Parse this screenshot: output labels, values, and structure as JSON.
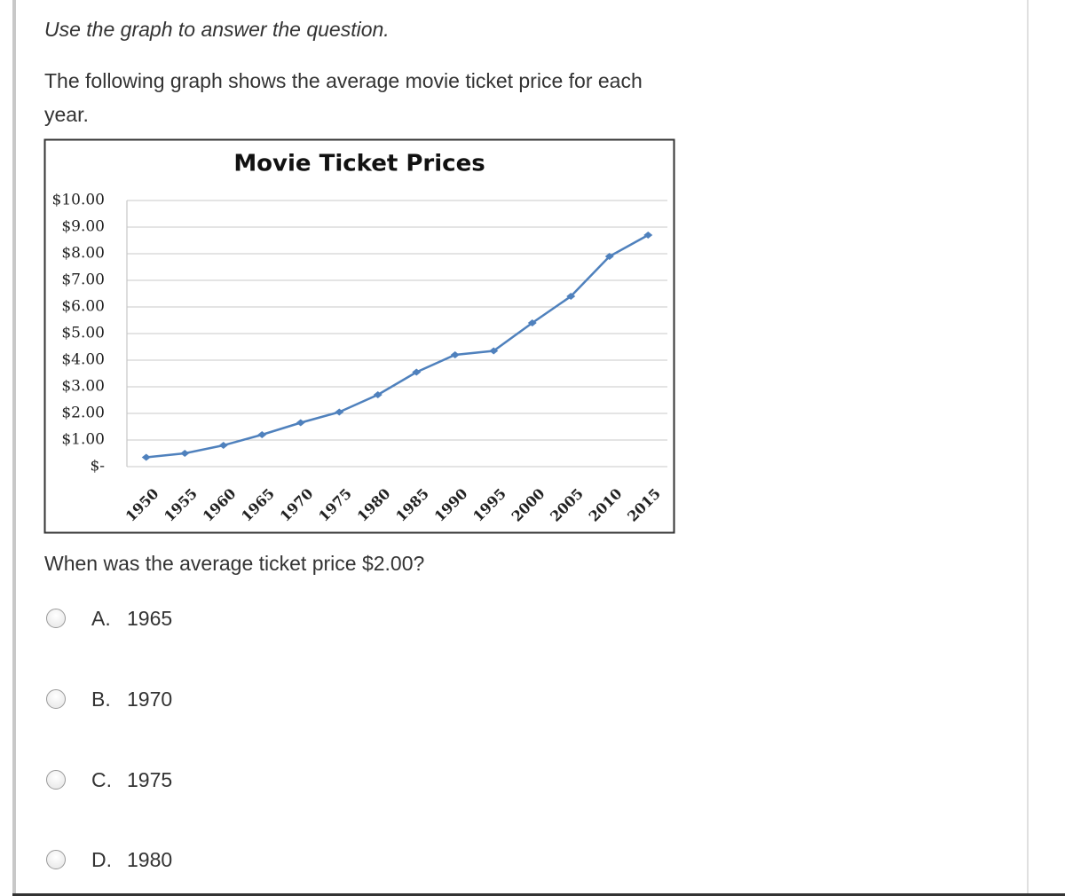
{
  "instructions": "Use the graph to answer the question.",
  "prompt": "The following graph shows the average movie ticket price for each year.",
  "chart_data": {
    "type": "line",
    "title": "Movie Ticket Prices",
    "categories": [
      "1950",
      "1955",
      "1960",
      "1965",
      "1970",
      "1975",
      "1980",
      "1985",
      "1990",
      "1995",
      "2000",
      "2005",
      "2010",
      "2015"
    ],
    "values": [
      0.35,
      0.5,
      0.8,
      1.2,
      1.65,
      2.05,
      2.7,
      3.55,
      4.2,
      4.35,
      5.4,
      6.4,
      7.9,
      8.7
    ],
    "color": "#4f81bd",
    "ylim": [
      0,
      10
    ],
    "yticks": [
      {
        "value": 0,
        "label": "$-"
      },
      {
        "value": 1,
        "label": "$1.00"
      },
      {
        "value": 2,
        "label": "$2.00"
      },
      {
        "value": 3,
        "label": "$3.00"
      },
      {
        "value": 4,
        "label": "$4.00"
      },
      {
        "value": 5,
        "label": "$5.00"
      },
      {
        "value": 6,
        "label": "$6.00"
      },
      {
        "value": 7,
        "label": "$7.00"
      },
      {
        "value": 8,
        "label": "$8.00"
      },
      {
        "value": 9,
        "label": "$9.00"
      },
      {
        "value": 10,
        "label": "$10.00"
      }
    ],
    "grid": true
  },
  "question": "When was the average ticket price $2.00?",
  "options": [
    {
      "letter": "A.",
      "text": "1965"
    },
    {
      "letter": "B.",
      "text": "1970"
    },
    {
      "letter": "C.",
      "text": "1975"
    },
    {
      "letter": "D.",
      "text": "1980"
    }
  ]
}
